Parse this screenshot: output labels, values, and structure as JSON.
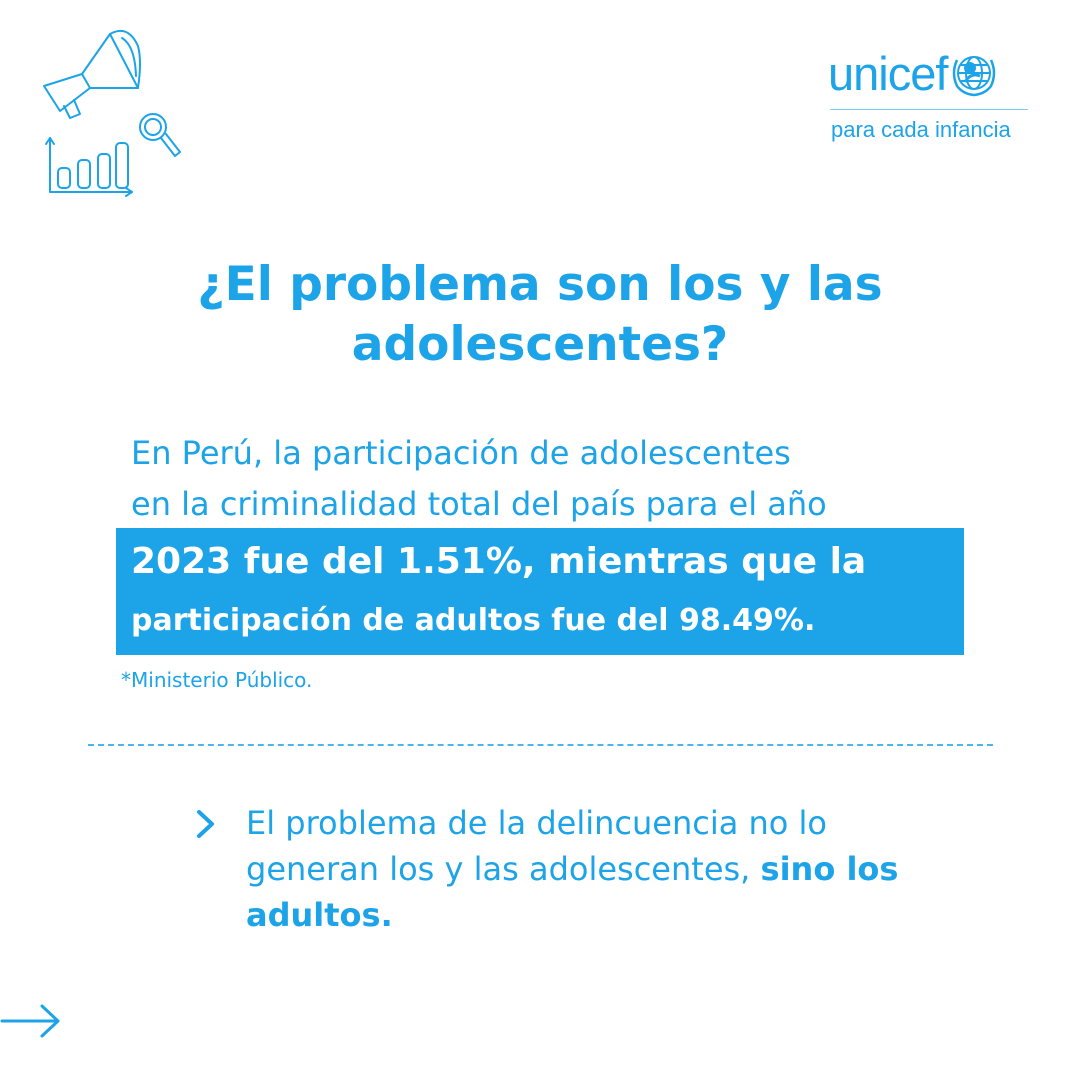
{
  "brand": {
    "name": "unicef",
    "tagline": "para cada infancia",
    "color": "#1ca3e8"
  },
  "title": {
    "line1": "¿El problema son los y las",
    "line2": "adolescentes?"
  },
  "intro": {
    "line1": "En Perú, la participación de adolescentes",
    "line2": "en la criminalidad total del país para el año"
  },
  "highlight": {
    "line1": "2023 fue del 1.51%, mientras que la",
    "line2": "participación de adultos fue del 98.49%."
  },
  "source": "*Ministerio Público.",
  "point": {
    "text": "El problema de la delincuencia no lo generan los y las adolescentes,",
    "emphasis": "sino los adultos."
  },
  "icons": {
    "decoration": [
      "megaphone-icon",
      "bar-chart-icon",
      "magnifier-icon"
    ],
    "bullet": "chevron-right-icon",
    "next": "arrow-right-icon"
  }
}
